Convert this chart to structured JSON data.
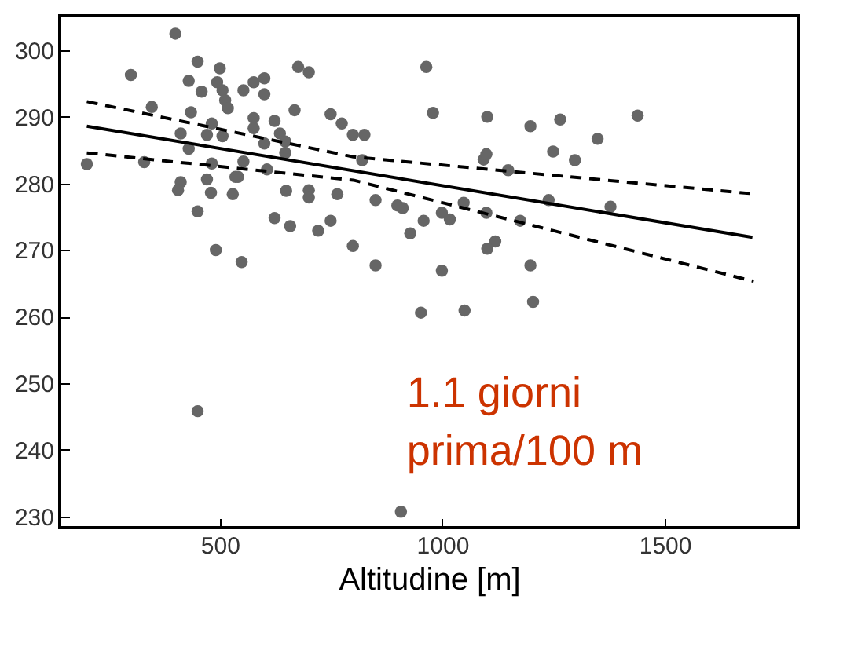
{
  "chart_data": {
    "type": "scatter",
    "xlabel": "Altitudine [m]",
    "xlim": [
      140,
      1800
    ],
    "ylim": [
      228.3,
      305.2
    ],
    "xticks": [
      500,
      1000,
      1500
    ],
    "yticks": [
      230,
      240,
      250,
      260,
      270,
      280,
      290,
      300
    ],
    "grid": false,
    "annotations": [
      "1.1 giorni\nprima/100 m"
    ],
    "series": [
      {
        "color": "#666666",
        "marker": "circle",
        "x": [
          201,
          300,
          400,
          347,
          330,
          450,
          500,
          430,
          459,
          494,
          506,
          512,
          518,
          553,
          576,
          600,
          600,
          676,
          700,
          668,
          749,
          774,
          799,
          825,
          820,
          435,
          412,
          482,
          471,
          506,
          430,
          482,
          576,
          576,
          623,
          635,
          647,
          600,
          647,
          606,
          553,
          541,
          412,
          406,
          471,
          480,
          529,
          535,
          450,
          649,
          700,
          700,
          764,
          850,
          899,
          911,
          958,
          928,
          623,
          658,
          721,
          749,
          799,
          850,
          491,
          549,
          964,
          979,
          1101,
          1198,
          1265,
          1439,
          1349,
          1249,
          1298,
          1093,
          1099,
          1148,
          1239,
          1378,
          1048,
          999,
          1017,
          1099,
          1175,
          1119,
          1101,
          999,
          1198,
          952,
          1050,
          1204,
          450,
          907
        ],
        "values": [
          282.9,
          296.3,
          302.5,
          291.5,
          283.2,
          298.3,
          297.3,
          295.4,
          293.8,
          295.2,
          294,
          292.5,
          291.3,
          294,
          295.2,
          295.8,
          293.4,
          297.5,
          296.7,
          291,
          290.4,
          289,
          287.3,
          287.3,
          283.5,
          290.7,
          287.5,
          289,
          287.3,
          287.1,
          285.2,
          283,
          289.8,
          288.3,
          289.4,
          287.5,
          286.3,
          286,
          284.6,
          282.1,
          283.3,
          281,
          280.2,
          279,
          280.6,
          278.6,
          278.4,
          281,
          275.8,
          278.9,
          279,
          277.9,
          278.4,
          277.5,
          276.7,
          276.3,
          274.4,
          272.5,
          274.8,
          273.6,
          272.9,
          274.4,
          270.6,
          267.7,
          270,
          268.2,
          297.5,
          290.6,
          290,
          288.6,
          289.6,
          290.2,
          286.7,
          284.8,
          283.5,
          283.6,
          284.4,
          282,
          277.5,
          276.5,
          277.1,
          275.6,
          274.6,
          275.6,
          274.4,
          271.3,
          270.2,
          266.9,
          267.7,
          260.6,
          260.9,
          262.2,
          245.8,
          230.7
        ]
      },
      {
        "type": "line",
        "color": "#000000",
        "line_style": "solid",
        "marker": "none",
        "x": [
          201,
          1697
        ],
        "values": [
          288.6,
          271.9
        ]
      },
      {
        "type": "line",
        "color": "#000000",
        "line_style": "dashed",
        "marker": "none",
        "x": [
          201,
          800,
          1691
        ],
        "values": [
          292.3,
          284,
          278.5
        ]
      },
      {
        "type": "line",
        "color": "#000000",
        "line_style": "dashed",
        "marker": "none",
        "x": [
          201,
          800,
          1700
        ],
        "values": [
          284.6,
          280.5,
          265.3
        ]
      }
    ]
  }
}
